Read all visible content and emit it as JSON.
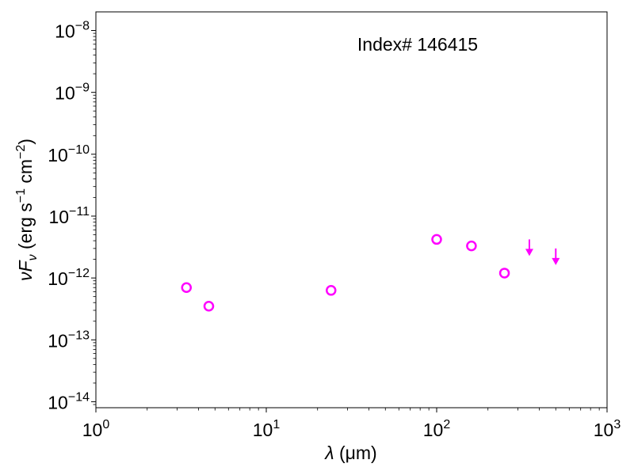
{
  "chart_data": {
    "type": "scatter",
    "title": "",
    "xlabel_var": "λ",
    "xlabel_unit": " (μm)",
    "ylabel_var": "νF",
    "ylabel_sub": "ν",
    "ylabel_unit_a": " (erg s",
    "ylabel_sup_a": "−1",
    "ylabel_unit_b": " cm",
    "ylabel_sup_b": "−2",
    "ylabel_unit_c": ")",
    "x_scale": "log",
    "y_scale": "log",
    "xlim": [
      1,
      1000
    ],
    "ylim": [
      8e-15,
      2e-08
    ],
    "x_ticks": [
      {
        "base": "10",
        "exp": "0",
        "value": 1
      },
      {
        "base": "10",
        "exp": "1",
        "value": 10
      },
      {
        "base": "10",
        "exp": "2",
        "value": 100
      },
      {
        "base": "10",
        "exp": "3",
        "value": 1000
      }
    ],
    "y_ticks": [
      {
        "base": "10",
        "exp": "−14",
        "value": 1e-14
      },
      {
        "base": "10",
        "exp": "−13",
        "value": 1e-13
      },
      {
        "base": "10",
        "exp": "−12",
        "value": 1e-12
      },
      {
        "base": "10",
        "exp": "−11",
        "value": 1e-11
      },
      {
        "base": "10",
        "exp": "−10",
        "value": 1e-10
      },
      {
        "base": "10",
        "exp": "−9",
        "value": 1e-09
      },
      {
        "base": "10",
        "exp": "−8",
        "value": 1e-08
      }
    ],
    "annotation": "Index# 146415",
    "marker_color": "#ff00ff",
    "detections": [
      {
        "x": 3.4,
        "y": 7e-13
      },
      {
        "x": 4.6,
        "y": 3.5e-13
      },
      {
        "x": 24,
        "y": 6.3e-13
      },
      {
        "x": 100,
        "y": 4.2e-12
      },
      {
        "x": 160,
        "y": 3.3e-12
      },
      {
        "x": 250,
        "y": 1.2e-12
      }
    ],
    "upper_limits": [
      {
        "x": 350,
        "y": 4.2e-12
      },
      {
        "x": 500,
        "y": 3e-12
      }
    ]
  }
}
